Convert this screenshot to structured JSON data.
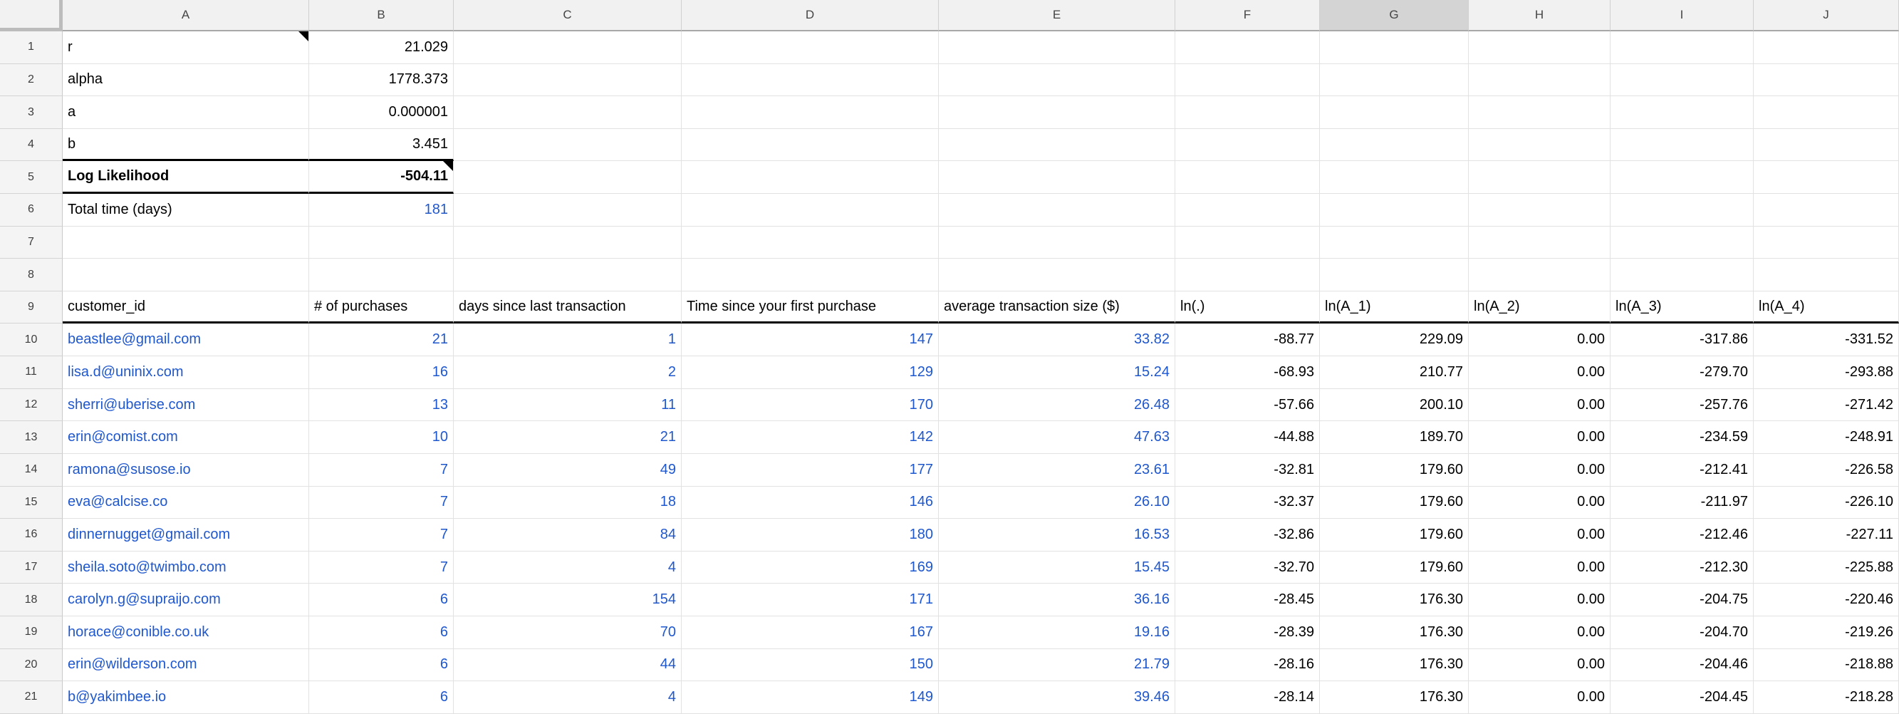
{
  "colors": {
    "value_blue": "#1f57cd",
    "text_black": "#000000",
    "header_bg": "#f1f1f1",
    "selected_header_bg": "#d4d4d4",
    "gutter_bg": "#f4f4f4",
    "gridline": "#e2e2e2",
    "thick_border": "#000000"
  },
  "sheet": {
    "column_letters": [
      "A",
      "B",
      "C",
      "D",
      "E",
      "F",
      "G",
      "H",
      "I",
      "J"
    ],
    "selected_column_letter": "G",
    "row_numbers": [
      1,
      2,
      3,
      4,
      5,
      6,
      7,
      8,
      9,
      10,
      11,
      12,
      13,
      14,
      15,
      16,
      17,
      18,
      19,
      20,
      21
    ],
    "parameter_rows": [
      {
        "row": 1,
        "label": "r",
        "value": "21.029",
        "bold": false,
        "boxed": false,
        "value_blue": false,
        "note_on_label": true,
        "note_on_value": false
      },
      {
        "row": 2,
        "label": "alpha",
        "value": "1778.373",
        "bold": false,
        "boxed": false,
        "value_blue": false,
        "note_on_label": false,
        "note_on_value": false
      },
      {
        "row": 3,
        "label": "a",
        "value": "0.000001",
        "bold": false,
        "boxed": false,
        "value_blue": false,
        "note_on_label": false,
        "note_on_value": false
      },
      {
        "row": 4,
        "label": "b",
        "value": "3.451",
        "bold": false,
        "boxed": false,
        "value_blue": false,
        "note_on_label": false,
        "note_on_value": false
      },
      {
        "row": 5,
        "label": "Log Likelihood",
        "value": "-504.11",
        "bold": true,
        "boxed": true,
        "value_blue": false,
        "note_on_label": false,
        "note_on_value": true
      },
      {
        "row": 6,
        "label": "Total time (days)",
        "value": "181",
        "bold": false,
        "boxed": false,
        "value_blue": true,
        "note_on_label": false,
        "note_on_value": false
      }
    ],
    "empty_rows": [
      7,
      8
    ],
    "data_table": {
      "header_row": 9,
      "headers": [
        "customer_id",
        "# of purchases",
        "days since last transaction",
        "Time since your first purchase",
        "average transaction size ($)",
        "ln(.)",
        "ln(A_1)",
        "ln(A_2)",
        "ln(A_3)",
        "ln(A_4)"
      ],
      "blue_column_count": 5,
      "rows": [
        [
          "beastlee@gmail.com",
          "21",
          "1",
          "147",
          "33.82",
          "-88.77",
          "229.09",
          "0.00",
          "-317.86",
          "-331.52"
        ],
        [
          "lisa.d@uninix.com",
          "16",
          "2",
          "129",
          "15.24",
          "-68.93",
          "210.77",
          "0.00",
          "-279.70",
          "-293.88"
        ],
        [
          "sherri@uberise.com",
          "13",
          "11",
          "170",
          "26.48",
          "-57.66",
          "200.10",
          "0.00",
          "-257.76",
          "-271.42"
        ],
        [
          "erin@comist.com",
          "10",
          "21",
          "142",
          "47.63",
          "-44.88",
          "189.70",
          "0.00",
          "-234.59",
          "-248.91"
        ],
        [
          "ramona@susose.io",
          "7",
          "49",
          "177",
          "23.61",
          "-32.81",
          "179.60",
          "0.00",
          "-212.41",
          "-226.58"
        ],
        [
          "eva@calcise.co",
          "7",
          "18",
          "146",
          "26.10",
          "-32.37",
          "179.60",
          "0.00",
          "-211.97",
          "-226.10"
        ],
        [
          "dinnernugget@gmail.com",
          "7",
          "84",
          "180",
          "16.53",
          "-32.86",
          "179.60",
          "0.00",
          "-212.46",
          "-227.11"
        ],
        [
          "sheila.soto@twimbo.com",
          "7",
          "4",
          "169",
          "15.45",
          "-32.70",
          "179.60",
          "0.00",
          "-212.30",
          "-225.88"
        ],
        [
          "carolyn.g@supraijo.com",
          "6",
          "154",
          "171",
          "36.16",
          "-28.45",
          "176.30",
          "0.00",
          "-204.75",
          "-220.46"
        ],
        [
          "horace@conible.co.uk",
          "6",
          "70",
          "167",
          "19.16",
          "-28.39",
          "176.30",
          "0.00",
          "-204.70",
          "-219.26"
        ],
        [
          "erin@wilderson.com",
          "6",
          "44",
          "150",
          "21.79",
          "-28.16",
          "176.30",
          "0.00",
          "-204.46",
          "-218.88"
        ],
        [
          "b@yakimbee.io",
          "6",
          "4",
          "149",
          "39.46",
          "-28.14",
          "176.30",
          "0.00",
          "-204.45",
          "-218.28"
        ]
      ]
    }
  }
}
